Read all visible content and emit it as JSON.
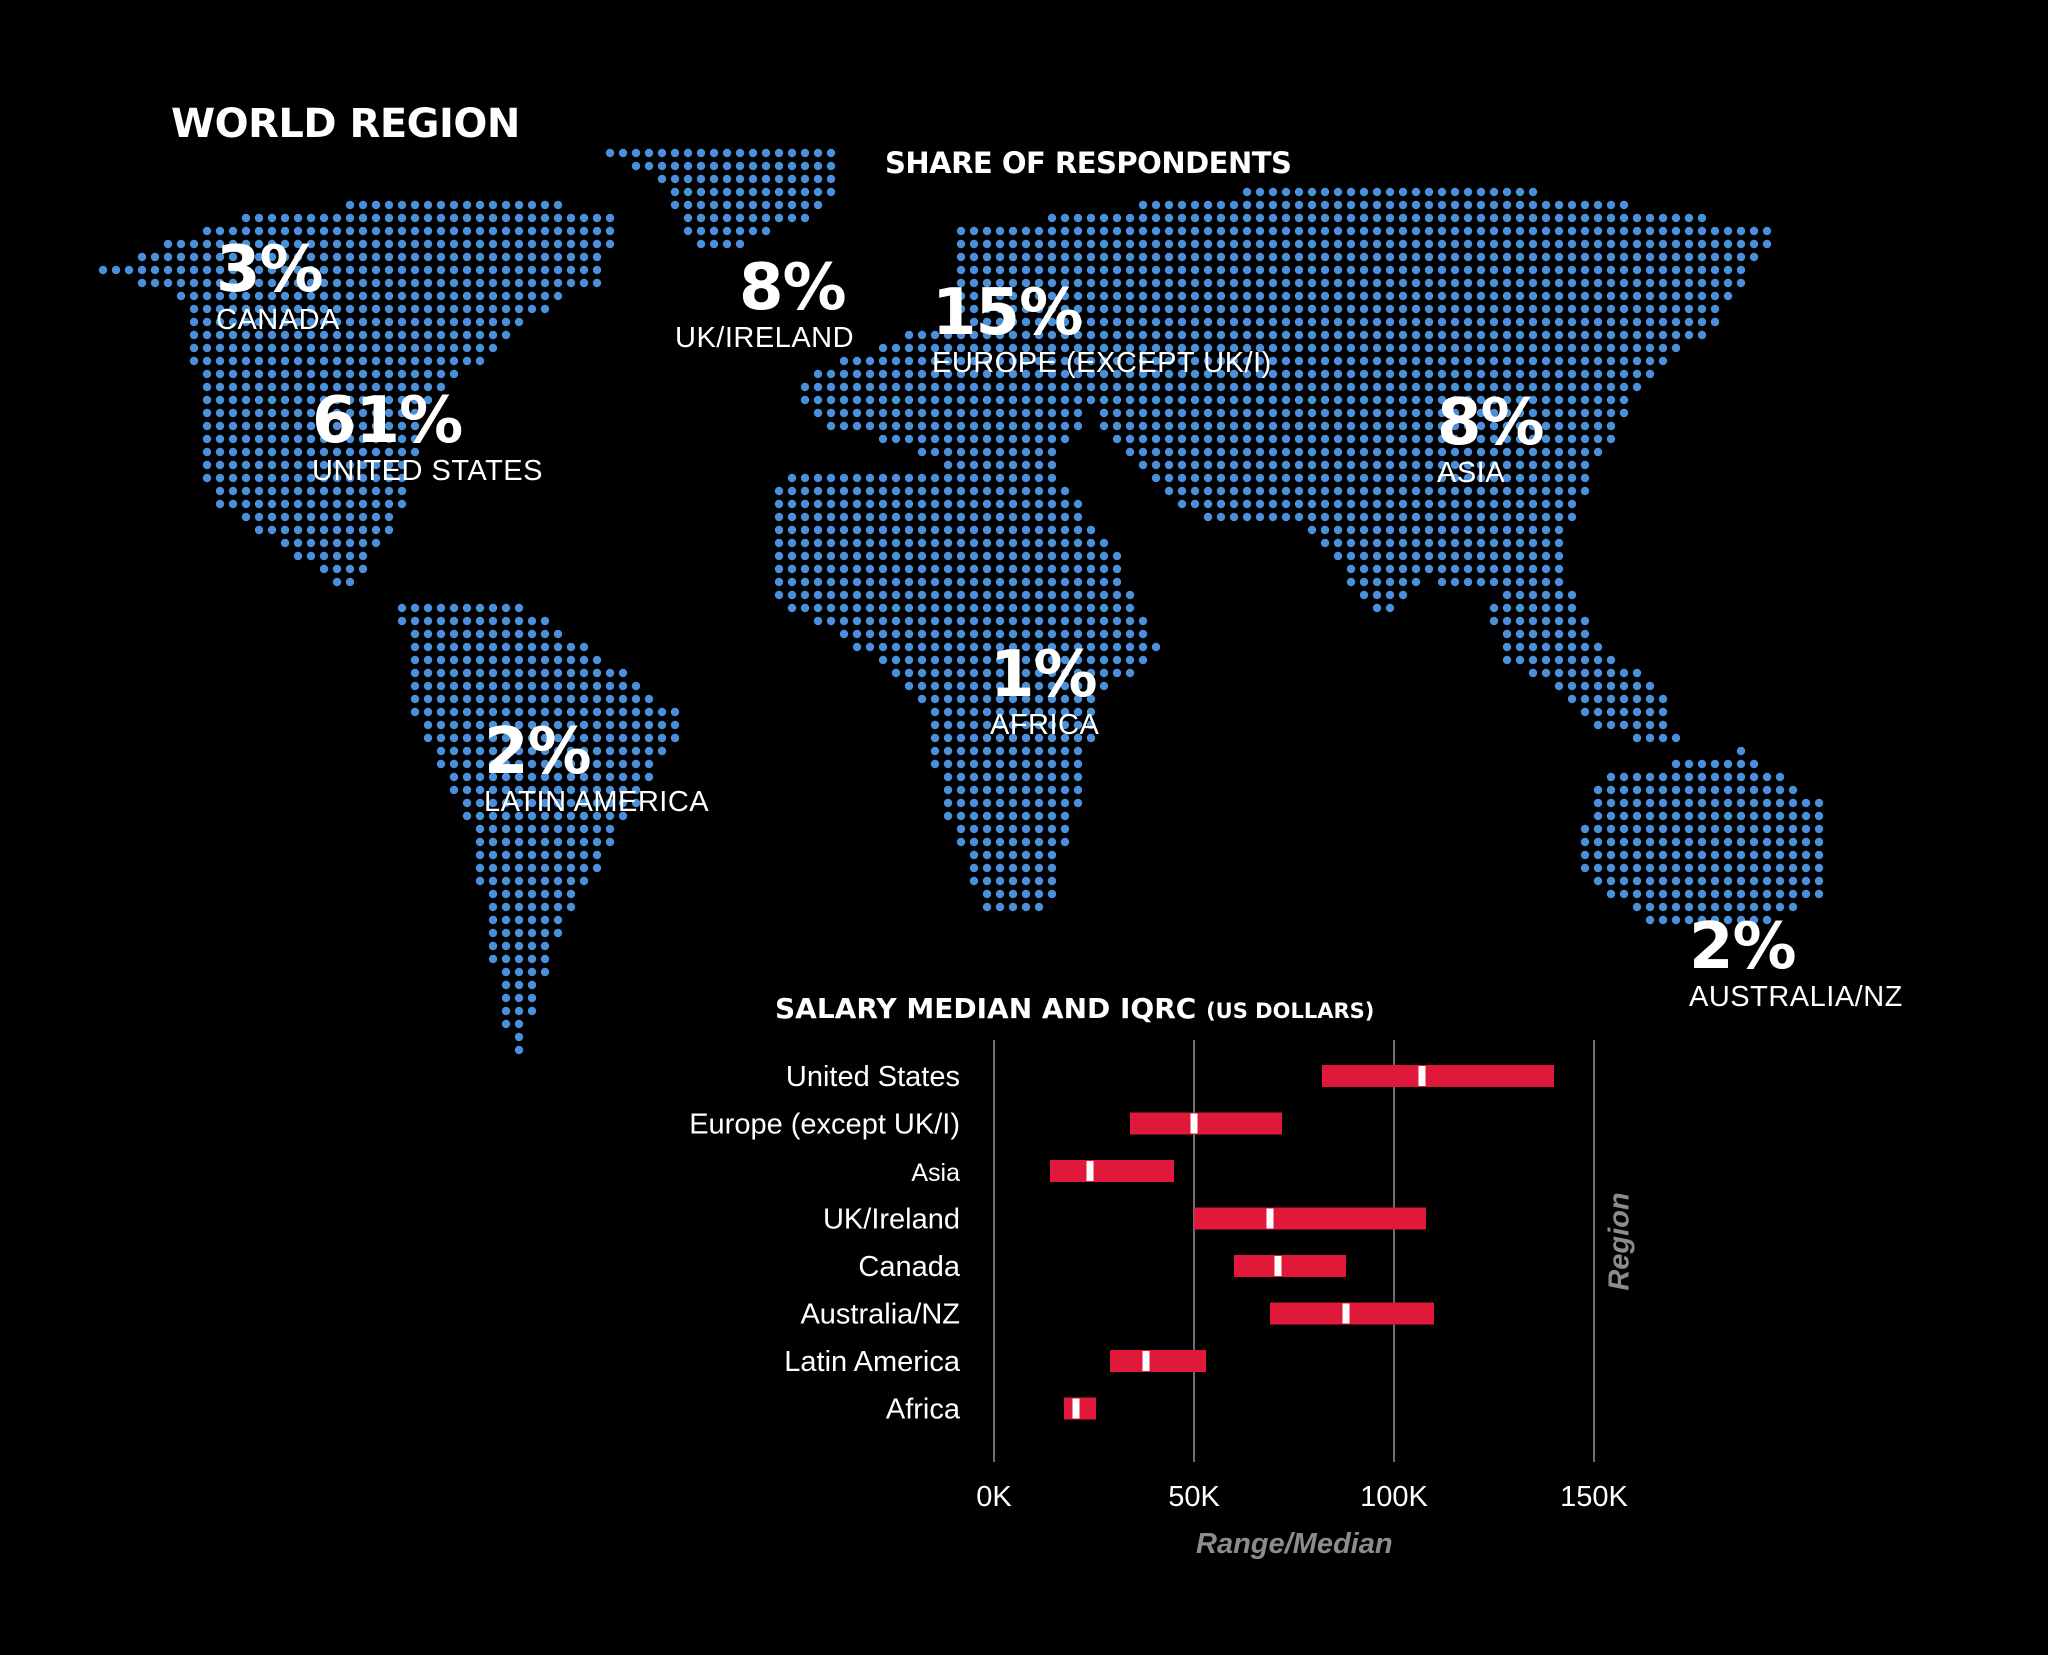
{
  "header": {
    "world_title": "WORLD REGION",
    "share_title": "SHARE OF RESPONDENTS"
  },
  "map": {
    "dot_color": "#4a8fd9",
    "regions": [
      {
        "id": "canada",
        "pct": "3%",
        "name": "CANADA"
      },
      {
        "id": "uk",
        "pct": "8%",
        "name": "UK/IRELAND"
      },
      {
        "id": "europe",
        "pct": "15%",
        "name": "EUROPE (EXCEPT UK/I)"
      },
      {
        "id": "us",
        "pct": "61%",
        "name": "UNITED STATES"
      },
      {
        "id": "asia",
        "pct": "8%",
        "name": "ASIA"
      },
      {
        "id": "africa",
        "pct": "1%",
        "name": "AFRICA"
      },
      {
        "id": "latam",
        "pct": "2%",
        "name": "LATIN AMERICA"
      },
      {
        "id": "aus",
        "pct": "2%",
        "name": "AUSTRALIA/NZ"
      }
    ]
  },
  "salary": {
    "title_main": "SALARY MEDIAN AND IQRC",
    "title_sub": "(US DOLLARS)"
  },
  "chart_data": {
    "type": "bar",
    "subtype": "floating-range-with-median",
    "title": "SALARY MEDIAN AND IQRC (US DOLLARS)",
    "xlabel": "Range/Median",
    "ylabel": "Region",
    "xlim": [
      0,
      150000
    ],
    "x_ticks": [
      {
        "value": 0,
        "label": "0K"
      },
      {
        "value": 50000,
        "label": "50K"
      },
      {
        "value": 100000,
        "label": "100K"
      },
      {
        "value": 150000,
        "label": "150K"
      }
    ],
    "bar_color": "#e0193a",
    "median_color": "#ffffff",
    "grid": true,
    "categories": [
      "United States",
      "Europe (except UK/I)",
      "Asia",
      "UK/Ireland",
      "Canada",
      "Australia/NZ",
      "Latin America",
      "Africa"
    ],
    "series": [
      {
        "low": 82000,
        "median": 107000,
        "high": 140000
      },
      {
        "low": 34000,
        "median": 50000,
        "high": 72000
      },
      {
        "low": 14000,
        "median": 24000,
        "high": 45000
      },
      {
        "low": 50000,
        "median": 69000,
        "high": 108000
      },
      {
        "low": 60000,
        "median": 71000,
        "high": 88000
      },
      {
        "low": 69000,
        "median": 88000,
        "high": 110000
      },
      {
        "low": 29000,
        "median": 38000,
        "high": 53000
      },
      {
        "low": 17500,
        "median": 20500,
        "high": 25500
      }
    ]
  }
}
